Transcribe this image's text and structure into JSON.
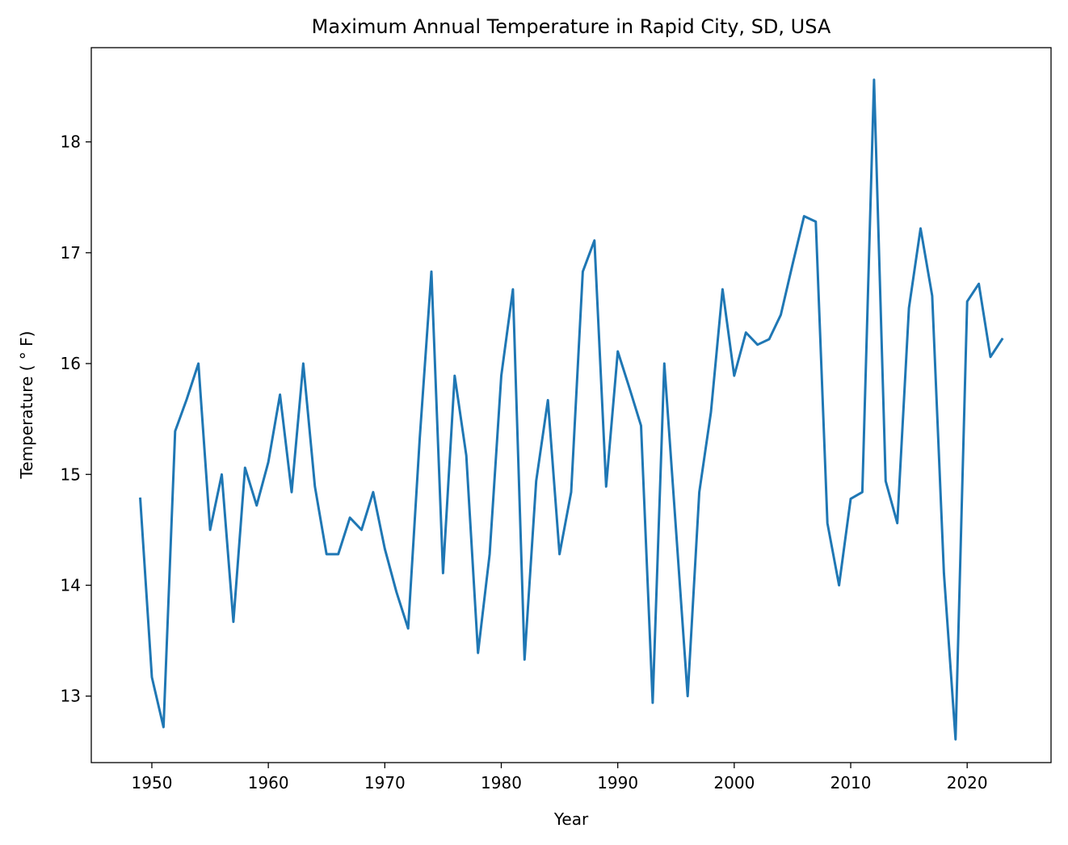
{
  "chart_data": {
    "type": "line",
    "title": "Maximum Annual Temperature in Rapid City, SD, USA",
    "xlabel": "Year",
    "ylabel": "Temperature ( ° F)",
    "xlim": [
      1944.8,
      2027.2
    ],
    "ylim": [
      12.4,
      18.85
    ],
    "xticks": [
      1950,
      1960,
      1970,
      1980,
      1990,
      2000,
      2010,
      2020
    ],
    "yticks": [
      13,
      14,
      15,
      16,
      17,
      18
    ],
    "grid": false,
    "legend": "none",
    "series": [
      {
        "color": "#1f77b4",
        "x": [
          1949,
          1950,
          1951,
          1952,
          1953,
          1954,
          1955,
          1956,
          1957,
          1958,
          1959,
          1960,
          1961,
          1962,
          1963,
          1964,
          1965,
          1966,
          1967,
          1968,
          1969,
          1970,
          1971,
          1972,
          1973,
          1974,
          1975,
          1976,
          1977,
          1978,
          1979,
          1980,
          1981,
          1982,
          1983,
          1984,
          1985,
          1986,
          1987,
          1988,
          1989,
          1990,
          1991,
          1992,
          1993,
          1994,
          1995,
          1996,
          1997,
          1998,
          1999,
          2000,
          2001,
          2002,
          2003,
          2004,
          2005,
          2006,
          2007,
          2008,
          2009,
          2010,
          2011,
          2012,
          2013,
          2014,
          2015,
          2016,
          2017,
          2018,
          2019,
          2020,
          2021,
          2022,
          2023
        ],
        "y": [
          14.78,
          13.17,
          12.72,
          15.39,
          15.68,
          16.0,
          14.5,
          15.0,
          13.67,
          15.06,
          14.72,
          15.11,
          15.72,
          14.84,
          16.0,
          14.89,
          14.28,
          14.28,
          14.61,
          14.5,
          14.84,
          14.33,
          13.94,
          13.61,
          15.33,
          16.83,
          14.11,
          15.89,
          15.17,
          13.39,
          14.28,
          15.89,
          16.67,
          13.33,
          14.94,
          15.67,
          14.28,
          14.84,
          16.83,
          17.11,
          14.89,
          16.11,
          15.78,
          15.44,
          12.94,
          16.0,
          14.5,
          13.0,
          14.84,
          15.56,
          16.67,
          15.89,
          16.28,
          16.17,
          16.22,
          16.44,
          16.89,
          17.33,
          17.28,
          14.56,
          14.0,
          14.78,
          14.84,
          18.56,
          14.94,
          14.56,
          16.5,
          17.22,
          16.61,
          14.11,
          12.61,
          16.56,
          16.72,
          16.06,
          16.22
        ]
      }
    ]
  }
}
